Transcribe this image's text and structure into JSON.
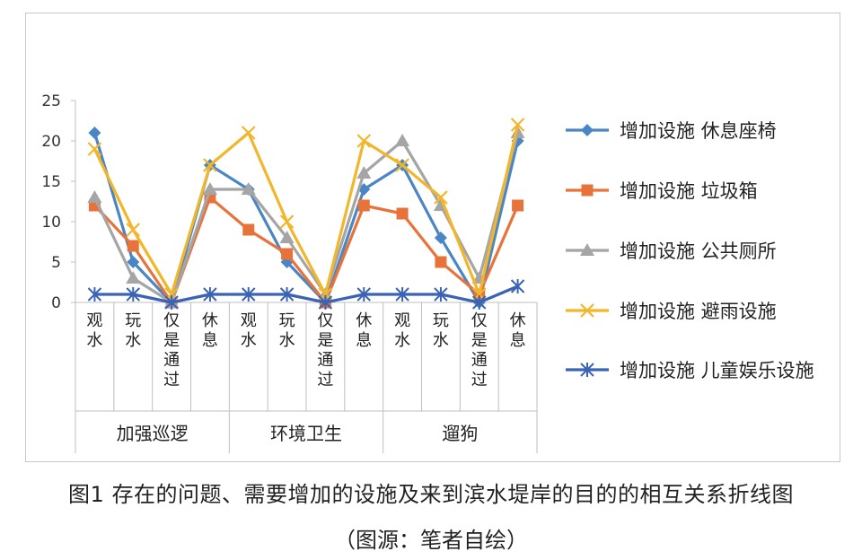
{
  "chart_data": {
    "type": "line",
    "ylim": [
      0,
      25
    ],
    "yticks": [
      "0",
      "5",
      "10",
      "15",
      "20",
      "25"
    ],
    "groups": [
      {
        "name": "加强巡逻",
        "categories": [
          "观水",
          "玩水",
          "仅是通过",
          "休息"
        ]
      },
      {
        "name": "环境卫生",
        "categories": [
          "观水",
          "玩水",
          "仅是通过",
          "休息"
        ]
      },
      {
        "name": "遛狗",
        "categories": [
          "观水",
          "玩水",
          "仅是通过",
          "休息"
        ]
      }
    ],
    "series": [
      {
        "name": "增加设施 休息座椅",
        "color": "#4a86c5",
        "marker": "diamond",
        "values": [
          21,
          5,
          0,
          17,
          14,
          5,
          0,
          14,
          17,
          8,
          0,
          20
        ]
      },
      {
        "name": "增加设施 垃圾箱",
        "color": "#e8733a",
        "marker": "square",
        "values": [
          12,
          7,
          0,
          13,
          9,
          6,
          0,
          12,
          11,
          5,
          1,
          12
        ]
      },
      {
        "name": "增加设施 公共厕所",
        "color": "#a5a5a5",
        "marker": "triangle",
        "values": [
          13,
          3,
          0,
          14,
          14,
          8,
          1,
          16,
          20,
          12,
          3,
          21
        ]
      },
      {
        "name": "增加设施 避雨设施",
        "color": "#f2b62a",
        "marker": "x",
        "values": [
          19,
          9,
          1,
          17,
          21,
          10,
          1,
          20,
          17,
          13,
          1,
          22
        ]
      },
      {
        "name": "增加设施 儿童娱乐设施",
        "color": "#3b63b5",
        "marker": "star",
        "values": [
          1,
          1,
          0,
          1,
          1,
          1,
          0,
          1,
          1,
          1,
          0,
          2
        ]
      }
    ],
    "legend": "right"
  },
  "caption": {
    "main": "图1 存在的问题、需要增加的设施及来到滨水堤岸的目的的相互关系折线图",
    "sub": "（图源：笔者自绘）"
  }
}
